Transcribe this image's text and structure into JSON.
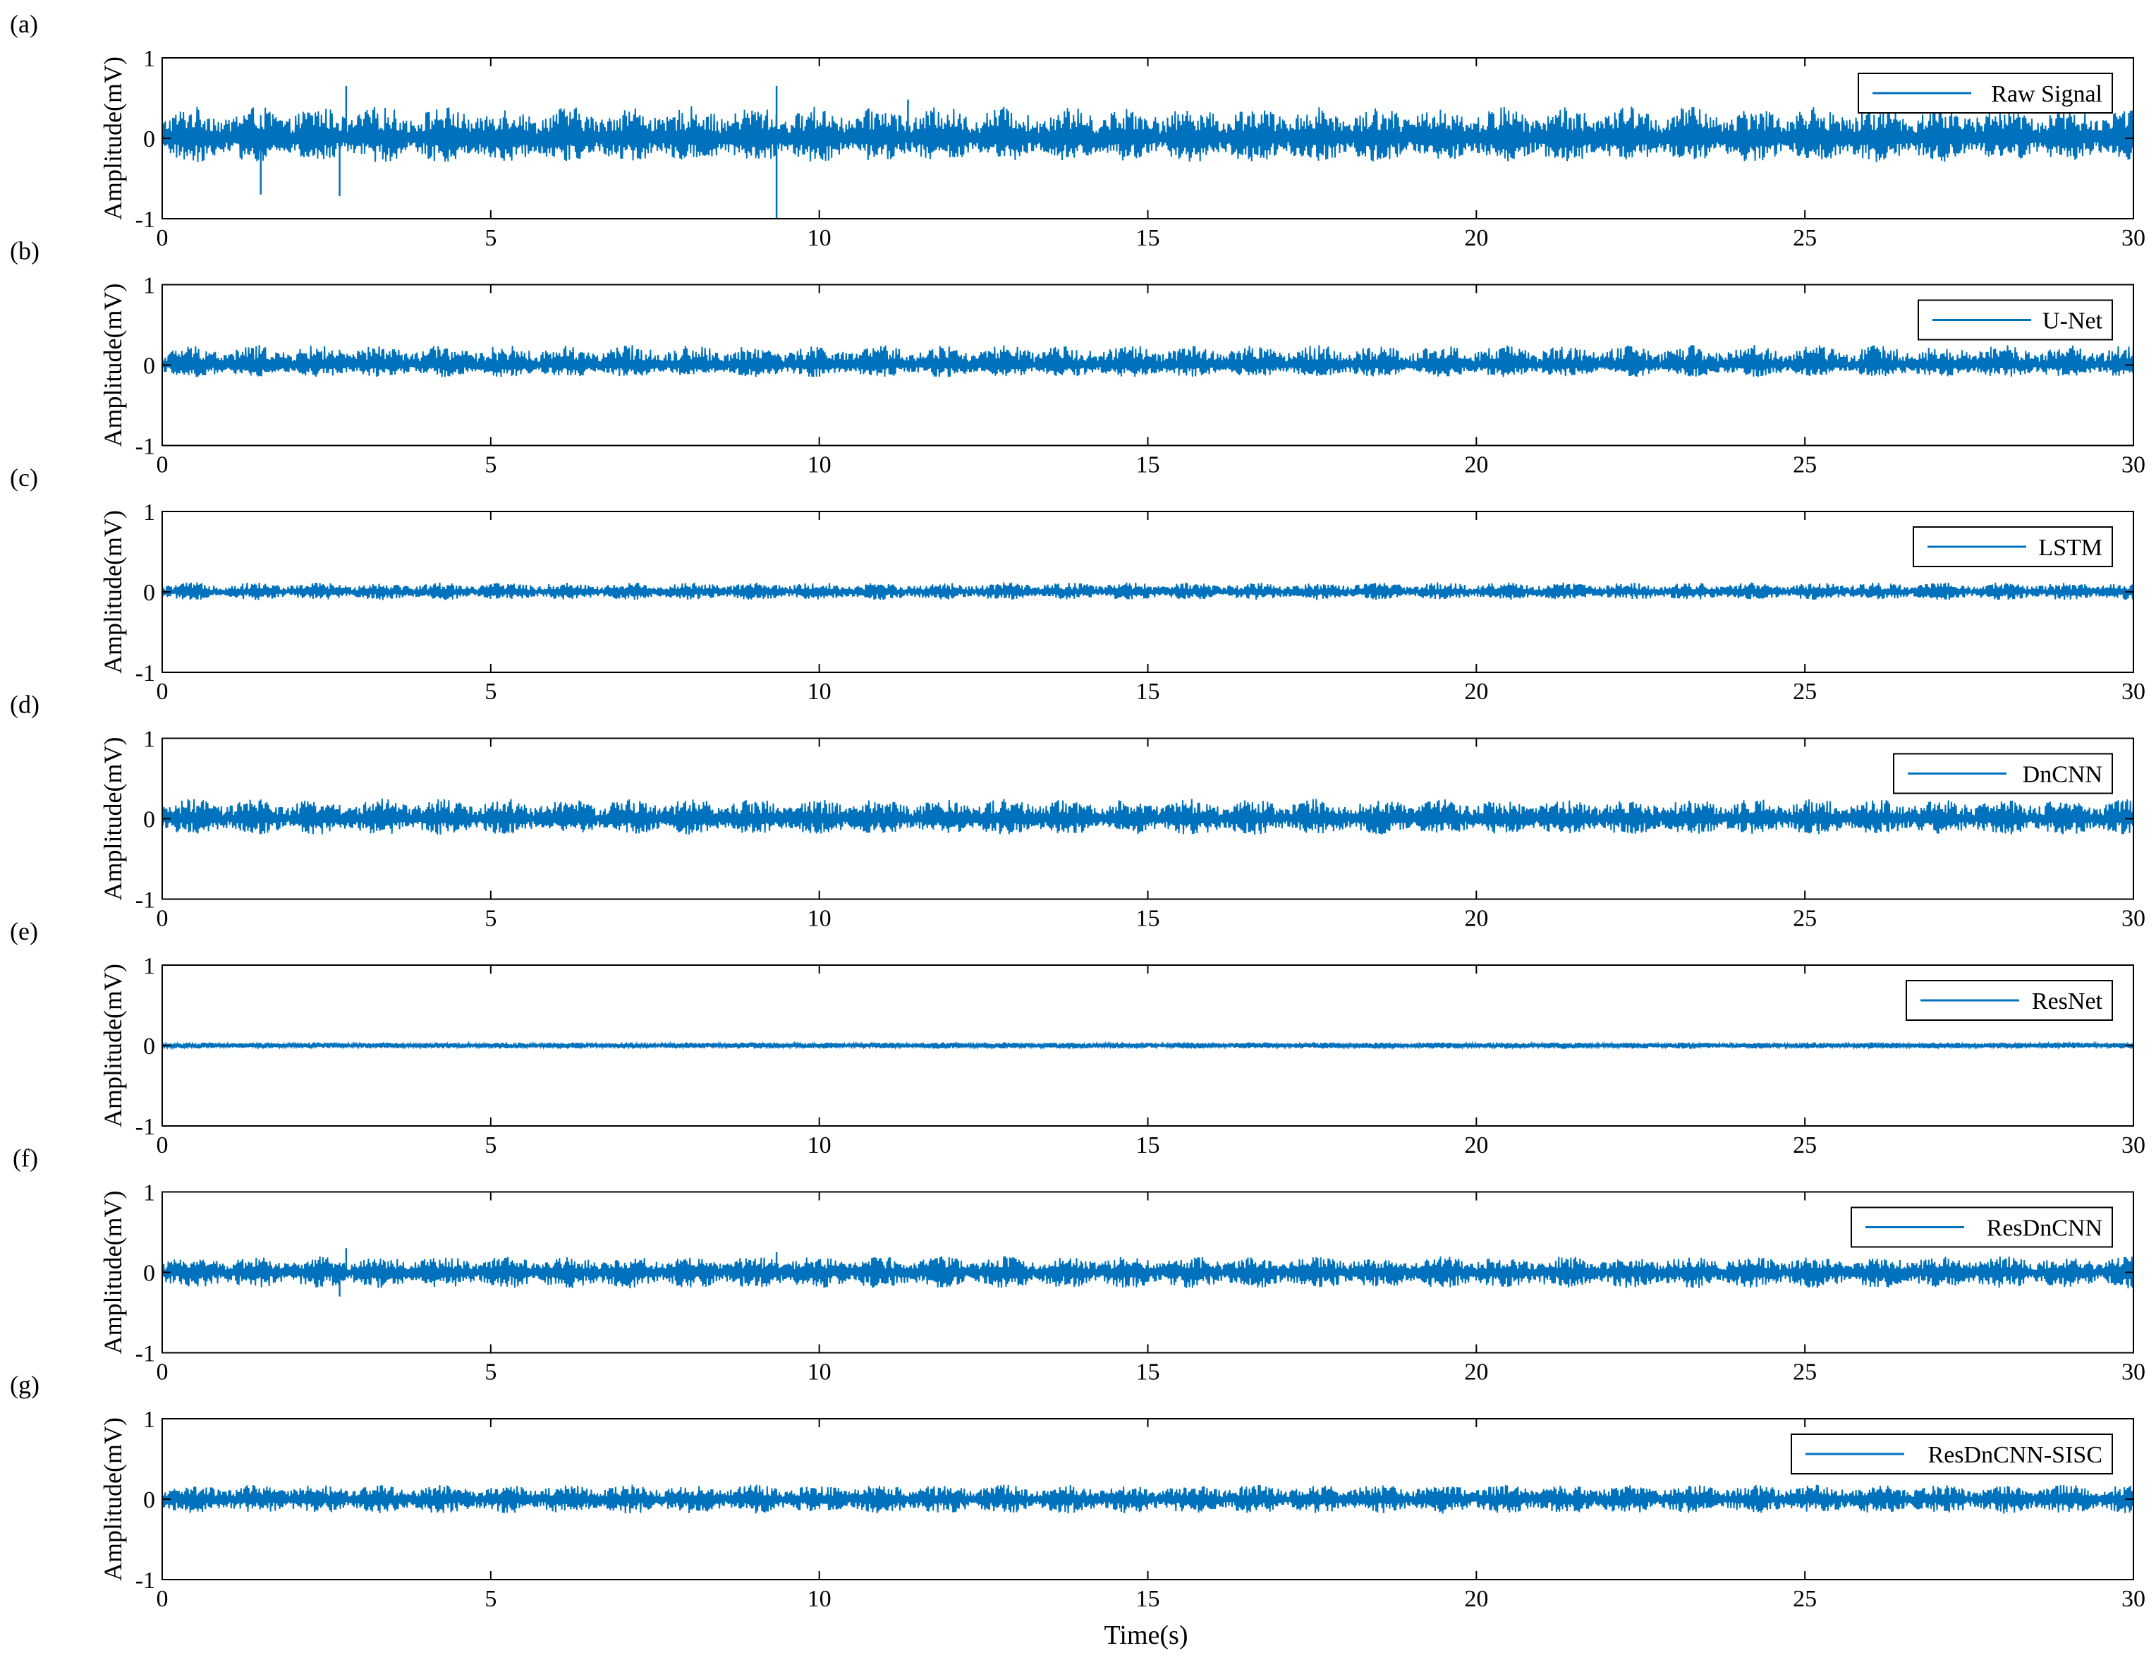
{
  "figure": {
    "xlabel": "Time(s)",
    "ylabel": "Amplitude(mV)",
    "line_color": "#0072BD"
  },
  "chart_data": [
    {
      "type": "line",
      "panel_label": "(a)",
      "legend": "Raw Signal",
      "xlim": [
        0,
        30
      ],
      "ylim": [
        -1,
        1
      ],
      "xticks": [
        "0",
        "5",
        "10",
        "15",
        "20",
        "25",
        "30"
      ],
      "yticks": [
        "1",
        "0",
        "-1"
      ],
      "legend_position": "top-right",
      "signal": {
        "amplitude_range": [
          -0.3,
          0.4
        ],
        "spikes": [
          [
            1.5,
            -0.7
          ],
          [
            2.7,
            -0.72
          ],
          [
            2.8,
            0.65
          ],
          [
            9.35,
            -1.0
          ],
          [
            9.35,
            0.65
          ],
          [
            11.35,
            0.48
          ]
        ]
      }
    },
    {
      "type": "line",
      "panel_label": "(b)",
      "legend": "U-Net",
      "xlim": [
        0,
        30
      ],
      "ylim": [
        -1,
        1
      ],
      "xticks": [
        "0",
        "5",
        "10",
        "15",
        "20",
        "25",
        "30"
      ],
      "yticks": [
        "1",
        "0",
        "-1"
      ],
      "legend_position": "top-right",
      "signal": {
        "amplitude_range": [
          -0.15,
          0.25
        ]
      }
    },
    {
      "type": "line",
      "panel_label": "(c)",
      "legend": "LSTM",
      "xlim": [
        0,
        30
      ],
      "ylim": [
        -1,
        1
      ],
      "xticks": [
        "0",
        "5",
        "10",
        "15",
        "20",
        "25",
        "30"
      ],
      "yticks": [
        "1",
        "0",
        "-1"
      ],
      "legend_position": "top-right",
      "signal": {
        "amplitude_range": [
          -0.1,
          0.12
        ]
      }
    },
    {
      "type": "line",
      "panel_label": "(d)",
      "legend": "DnCNN",
      "xlim": [
        0,
        30
      ],
      "ylim": [
        -1,
        1
      ],
      "xticks": [
        "0",
        "5",
        "10",
        "15",
        "20",
        "25",
        "30"
      ],
      "yticks": [
        "1",
        "0",
        "-1"
      ],
      "legend_position": "top-right",
      "signal": {
        "amplitude_range": [
          -0.2,
          0.25
        ]
      }
    },
    {
      "type": "line",
      "panel_label": "(e)",
      "legend": "ResNet",
      "xlim": [
        0,
        30
      ],
      "ylim": [
        -1,
        1
      ],
      "xticks": [
        "0",
        "5",
        "10",
        "15",
        "20",
        "25",
        "30"
      ],
      "yticks": [
        "1",
        "0",
        "-1"
      ],
      "legend_position": "top-right",
      "signal": {
        "amplitude_range": [
          -0.04,
          0.04
        ]
      }
    },
    {
      "type": "line",
      "panel_label": "(f)",
      "legend": "ResDnCNN",
      "xlim": [
        0,
        30
      ],
      "ylim": [
        -1,
        1
      ],
      "xticks": [
        "0",
        "5",
        "10",
        "15",
        "20",
        "25",
        "30"
      ],
      "yticks": [
        "1",
        "0",
        "-1"
      ],
      "legend_position": "top-right",
      "signal": {
        "amplitude_range": [
          -0.2,
          0.2
        ],
        "spikes": [
          [
            2.7,
            -0.3
          ],
          [
            2.8,
            0.3
          ],
          [
            9.35,
            0.25
          ]
        ]
      }
    },
    {
      "type": "line",
      "panel_label": "(g)",
      "legend": "ResDnCNN-SISC",
      "xlim": [
        0,
        30
      ],
      "ylim": [
        -1,
        1
      ],
      "xticks": [
        "0",
        "5",
        "10",
        "15",
        "20",
        "25",
        "30"
      ],
      "yticks": [
        "1",
        "0",
        "-1"
      ],
      "legend_position": "top-right",
      "signal": {
        "amplitude_range": [
          -0.18,
          0.18
        ]
      }
    }
  ]
}
